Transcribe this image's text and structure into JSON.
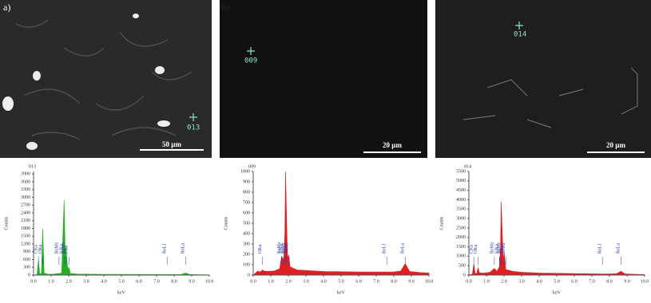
{
  "images": [
    {
      "panel_label": "a)",
      "spot": "013",
      "scale_bar": "50 µm"
    },
    {
      "panel_label": "b)",
      "spot": "009",
      "scale_bar": "20 µm"
    },
    {
      "spot": "014",
      "scale_bar": "20 µm"
    }
  ],
  "chart_data": [
    {
      "type": "area",
      "title": "013",
      "x_label": "keV",
      "y_label": "Counts",
      "color": "#22b022",
      "x": [
        0,
        0.2,
        0.28,
        0.35,
        0.45,
        0.52,
        0.6,
        0.8,
        1.2,
        1.6,
        1.74,
        1.8,
        1.84,
        1.95,
        2.01,
        2.1,
        2.5,
        4,
        6,
        7.5,
        8.0,
        8.4,
        8.65,
        8.9,
        9.5,
        10
      ],
      "values": [
        0,
        20,
        600,
        40,
        60,
        1800,
        80,
        30,
        40,
        80,
        2900,
        900,
        1100,
        200,
        300,
        60,
        40,
        30,
        25,
        20,
        20,
        25,
        80,
        25,
        15,
        10
      ],
      "xlim": [
        0,
        10
      ],
      "ylim": [
        0,
        4000
      ],
      "xticks": [
        {
          "value": 0,
          "label": "0.0"
        },
        {
          "value": 1,
          "label": "1.0"
        },
        {
          "value": 2,
          "label": "2.0"
        },
        {
          "value": 3,
          "label": "3.0"
        },
        {
          "value": 4,
          "label": "4.0"
        },
        {
          "value": 5,
          "label": "5.0"
        },
        {
          "value": 6,
          "label": "6.0"
        },
        {
          "value": 7,
          "label": "7.0"
        },
        {
          "value": 8,
          "label": "8.0"
        },
        {
          "value": 9,
          "label": "9.0"
        },
        {
          "value": 10,
          "label": "10.0"
        }
      ],
      "yticks": [
        0,
        300,
        600,
        900,
        1200,
        1500,
        1800,
        2100,
        2400,
        2700,
        3000,
        3300,
        3600,
        3900
      ],
      "annotations": [
        {
          "text": "CKa",
          "x": 0.28
        },
        {
          "text": "OKa",
          "x": 0.52
        },
        {
          "text": "ReMz",
          "x": 1.45
        },
        {
          "text": "SiKa",
          "x": 1.74
        },
        {
          "text": "ReMr",
          "x": 1.84
        },
        {
          "text": "PKa",
          "x": 2.01
        },
        {
          "text": "ReLl",
          "x": 7.6
        },
        {
          "text": "ReLa",
          "x": 8.65
        }
      ]
    },
    {
      "type": "area",
      "title": "009",
      "x_label": "keV",
      "y_label": "Counts",
      "color": "#e02020",
      "x": [
        0,
        0.2,
        0.28,
        0.35,
        0.45,
        0.52,
        0.6,
        0.8,
        1.2,
        1.5,
        1.62,
        1.74,
        1.8,
        1.84,
        1.95,
        2.01,
        2.1,
        2.5,
        4,
        6,
        7.5,
        8.0,
        8.4,
        8.65,
        8.9,
        9.5,
        10
      ],
      "values": [
        0,
        30,
        40,
        30,
        35,
        50,
        40,
        35,
        40,
        60,
        180,
        150,
        400,
        1000,
        150,
        200,
        80,
        50,
        35,
        30,
        30,
        30,
        40,
        110,
        35,
        25,
        20
      ],
      "xlim": [
        0,
        10
      ],
      "ylim": [
        0,
        1000
      ],
      "xticks": [
        {
          "value": 0,
          "label": "0.0"
        },
        {
          "value": 1,
          "label": "1.0"
        },
        {
          "value": 2,
          "label": "2.0"
        },
        {
          "value": 3,
          "label": "3.0"
        },
        {
          "value": 4,
          "label": "4.0"
        },
        {
          "value": 5,
          "label": "5.0"
        },
        {
          "value": 6,
          "label": "6.0"
        },
        {
          "value": 7,
          "label": "7.0"
        },
        {
          "value": 8,
          "label": "8.0"
        },
        {
          "value": 9,
          "label": "9.0"
        },
        {
          "value": 10,
          "label": "10.0"
        }
      ],
      "yticks": [
        0,
        100,
        200,
        300,
        400,
        500,
        600,
        700,
        800,
        900,
        1000
      ],
      "annotations": [
        {
          "text": "OKa",
          "x": 0.52
        },
        {
          "text": "ReMz",
          "x": 1.62
        },
        {
          "text": "SiKa",
          "x": 1.74
        },
        {
          "text": "ReMr",
          "x": 1.84
        },
        {
          "text": "PKa",
          "x": 1.95
        },
        {
          "text": "ReMr",
          "x": 2.05
        },
        {
          "text": "ReLl",
          "x": 7.6
        },
        {
          "text": "ReLa",
          "x": 8.65
        }
      ]
    },
    {
      "type": "area",
      "title": "014",
      "x_label": "keV",
      "y_label": "Counts",
      "color": "#e02020",
      "x": [
        0,
        0.2,
        0.28,
        0.35,
        0.45,
        0.52,
        0.6,
        0.8,
        1.2,
        1.45,
        1.6,
        1.74,
        1.8,
        1.84,
        1.95,
        2.01,
        2.1,
        2.5,
        3,
        4,
        6,
        7.5,
        8.0,
        8.4,
        8.65,
        8.9,
        9.5,
        10
      ],
      "values": [
        0,
        50,
        600,
        100,
        80,
        400,
        120,
        100,
        150,
        350,
        200,
        450,
        1500,
        3900,
        800,
        1200,
        300,
        200,
        150,
        110,
        80,
        60,
        60,
        70,
        200,
        60,
        40,
        30
      ],
      "xlim": [
        0,
        10
      ],
      "ylim": [
        0,
        5500
      ],
      "xticks": [
        {
          "value": 0,
          "label": "0.0"
        },
        {
          "value": 1,
          "label": "1.0"
        },
        {
          "value": 2,
          "label": "2.0"
        },
        {
          "value": 3,
          "label": "3.0"
        },
        {
          "value": 4,
          "label": "4.0"
        },
        {
          "value": 5,
          "label": "5.0"
        },
        {
          "value": 6,
          "label": "6.0"
        },
        {
          "value": 7,
          "label": "7.0"
        },
        {
          "value": 8,
          "label": "8.0"
        },
        {
          "value": 9,
          "label": "9.0"
        },
        {
          "value": 10,
          "label": "10.0"
        }
      ],
      "yticks": [
        0,
        500,
        1000,
        1500,
        2000,
        2500,
        3000,
        3500,
        4000,
        4500,
        5000,
        5500
      ],
      "annotations": [
        {
          "text": "CKa",
          "x": 0.28
        },
        {
          "text": "OKa",
          "x": 0.52
        },
        {
          "text": "ReMz",
          "x": 1.45
        },
        {
          "text": "SiKa",
          "x": 1.74
        },
        {
          "text": "ReMr",
          "x": 1.84
        },
        {
          "text": "PKa",
          "x": 2.01
        },
        {
          "text": "ReMr",
          "x": 2.12
        },
        {
          "text": "ReLl",
          "x": 7.6
        },
        {
          "text": "ReLa",
          "x": 8.65
        }
      ]
    }
  ]
}
